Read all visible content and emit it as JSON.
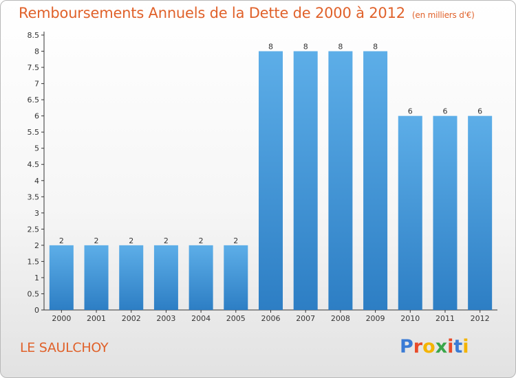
{
  "header": {
    "title": "Remboursements Annuels de la Dette de 2000 à 2012",
    "unit": "(en milliers d'€)"
  },
  "place_name": "LE SAULCHOY",
  "logo": {
    "text": "Proxiti",
    "letters": [
      {
        "ch": "P",
        "color": "#3a7bd5"
      },
      {
        "ch": "r",
        "color": "#e84b2a"
      },
      {
        "ch": "o",
        "color": "#f4b400"
      },
      {
        "ch": "x",
        "color": "#3aa64a"
      },
      {
        "ch": "i",
        "color": "#e84b2a"
      },
      {
        "ch": "t",
        "color": "#3a7bd5"
      },
      {
        "ch": "i",
        "color": "#f4b400"
      }
    ]
  },
  "colors": {
    "title": "#e0612a",
    "bar_top": "#5daee8",
    "bar_bottom": "#2d7ec4",
    "axis": "#333333"
  },
  "chart_data": {
    "type": "bar",
    "title": "Remboursements Annuels de la Dette de 2000 à 2012",
    "subtitle": "(en milliers d'€)",
    "categories": [
      "2000",
      "2001",
      "2002",
      "2003",
      "2004",
      "2005",
      "2006",
      "2007",
      "2008",
      "2009",
      "2010",
      "2011",
      "2012"
    ],
    "values": [
      2,
      2,
      2,
      2,
      2,
      2,
      8,
      8,
      8,
      8,
      6,
      6,
      6
    ],
    "data_labels": [
      "2",
      "2",
      "2",
      "2",
      "2",
      "2",
      "8",
      "8",
      "8",
      "8",
      "6",
      "6",
      "6"
    ],
    "y_ticks": [
      "0",
      "0.5",
      "1",
      "1.5",
      "2",
      "2.5",
      "3",
      "3.5",
      "4",
      "4.5",
      "5",
      "5.5",
      "6",
      "6.5",
      "7",
      "7.5",
      "8",
      "8.5"
    ],
    "ylim": [
      0,
      8.5
    ],
    "grid": false,
    "legend": "none"
  }
}
